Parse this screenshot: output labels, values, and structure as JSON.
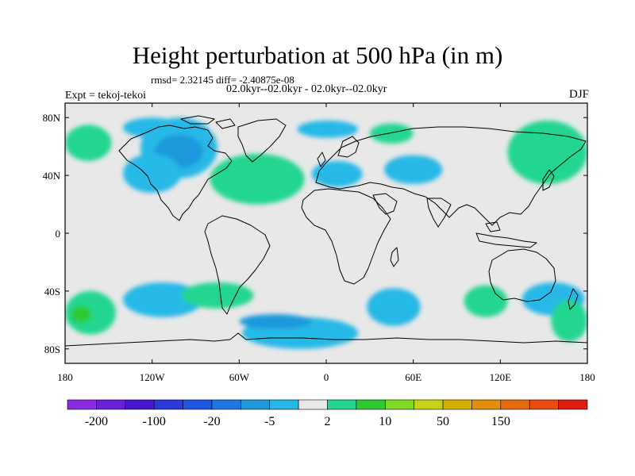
{
  "title": "Height perturbation at 500 hPa (in m)",
  "stats_line": "rmsd= 2.32145 diff= -2.40875e-08",
  "left_label": "Expt = tekoj-tekoi",
  "period_label": "02.0kyr--02.0kyr - 02.0kyr--02.0kyr",
  "season_label": "DJF",
  "chart_data": {
    "type": "heatmap",
    "title": "Height perturbation at 500 hPa (in m)",
    "x_range": [
      -180,
      180
    ],
    "y_range": [
      -90,
      90
    ],
    "x_ticks": [
      -180,
      -120,
      -60,
      0,
      60,
      120,
      180
    ],
    "x_tick_labels": [
      "180",
      "120W",
      "60W",
      "0",
      "60E",
      "120E",
      "180"
    ],
    "y_ticks": [
      80,
      40,
      0,
      -40,
      -80
    ],
    "y_tick_labels": [
      "80N",
      "40N",
      "0",
      "40S",
      "80S"
    ],
    "background_color": "#e8e8e8",
    "colorbar": {
      "colors": [
        "#8a2be2",
        "#6a1fd8",
        "#4b16cf",
        "#2a3ad8",
        "#1d56e0",
        "#1a78e0",
        "#1f98dd",
        "#26b8e6",
        "#e8e8e8",
        "#21d690",
        "#2ec832",
        "#7fdc22",
        "#c6d21a",
        "#d6b000",
        "#e0900a",
        "#e66a10",
        "#e84a10",
        "#e01c10"
      ],
      "labels": [
        "-200",
        "-100",
        "-20",
        "-5",
        "2",
        "10",
        "50",
        "150"
      ]
    },
    "regions": [
      {
        "sign": "negative",
        "level": "-5",
        "color": "#26b8e6",
        "lon": [
          -128,
          -75
        ],
        "lat": [
          38,
          80
        ]
      },
      {
        "sign": "negative",
        "level": "-20",
        "color": "#1f98dd",
        "lon": [
          -118,
          -85
        ],
        "lat": [
          45,
          68
        ]
      },
      {
        "sign": "negative",
        "level": "-5",
        "color": "#26b8e6",
        "lon": [
          -140,
          -100
        ],
        "lat": [
          28,
          55
        ]
      },
      {
        "sign": "negative",
        "level": "-5",
        "color": "#26b8e6",
        "lon": [
          -140,
          -100
        ],
        "lat": [
          66,
          80
        ]
      },
      {
        "sign": "negative",
        "level": "-5",
        "color": "#26b8e6",
        "lon": [
          -20,
          22
        ],
        "lat": [
          66,
          78
        ]
      },
      {
        "sign": "negative",
        "level": "-5",
        "color": "#26b8e6",
        "lon": [
          -10,
          25
        ],
        "lat": [
          32,
          50
        ]
      },
      {
        "sign": "negative",
        "level": "-5",
        "color": "#26b8e6",
        "lon": [
          40,
          80
        ],
        "lat": [
          34,
          54
        ]
      },
      {
        "sign": "negative",
        "level": "-5",
        "color": "#26b8e6",
        "lon": [
          -58,
          22
        ],
        "lat": [
          -80,
          -58
        ]
      },
      {
        "sign": "negative",
        "level": "-20",
        "color": "#1f98dd",
        "lon": [
          -60,
          -10
        ],
        "lat": [
          -66,
          -56
        ]
      },
      {
        "sign": "negative",
        "level": "-5",
        "color": "#26b8e6",
        "lon": [
          28,
          65
        ],
        "lat": [
          -64,
          -38
        ]
      },
      {
        "sign": "negative",
        "level": "-5",
        "color": "#26b8e6",
        "lon": [
          -140,
          -85
        ],
        "lat": [
          -58,
          -34
        ]
      },
      {
        "sign": "negative",
        "level": "-5",
        "color": "#26b8e6",
        "lon": [
          135,
          178
        ],
        "lat": [
          -57,
          -34
        ]
      },
      {
        "sign": "positive",
        "level": "2",
        "color": "#21d690",
        "lon": [
          -180,
          -148
        ],
        "lat": [
          50,
          75
        ]
      },
      {
        "sign": "positive",
        "level": "2",
        "color": "#21d690",
        "lon": [
          -80,
          -15
        ],
        "lat": [
          20,
          55
        ]
      },
      {
        "sign": "positive",
        "level": "2",
        "color": "#21d690",
        "lon": [
          30,
          60
        ],
        "lat": [
          62,
          76
        ]
      },
      {
        "sign": "positive",
        "level": "2",
        "color": "#21d690",
        "lon": [
          125,
          180
        ],
        "lat": [
          34,
          78
        ]
      },
      {
        "sign": "positive",
        "level": "2",
        "color": "#21d690",
        "lon": [
          -180,
          -145
        ],
        "lat": [
          -70,
          -40
        ]
      },
      {
        "sign": "positive",
        "level": "10",
        "color": "#2ec832",
        "lon": [
          -176,
          -162
        ],
        "lat": [
          -62,
          -50
        ]
      },
      {
        "sign": "positive",
        "level": "2",
        "color": "#21d690",
        "lon": [
          -100,
          -50
        ],
        "lat": [
          -52,
          -34
        ]
      },
      {
        "sign": "positive",
        "level": "2",
        "color": "#21d690",
        "lon": [
          95,
          125
        ],
        "lat": [
          -58,
          -36
        ]
      },
      {
        "sign": "positive",
        "level": "2",
        "color": "#21d690",
        "lon": [
          155,
          180
        ],
        "lat": [
          -75,
          -46
        ]
      }
    ]
  }
}
